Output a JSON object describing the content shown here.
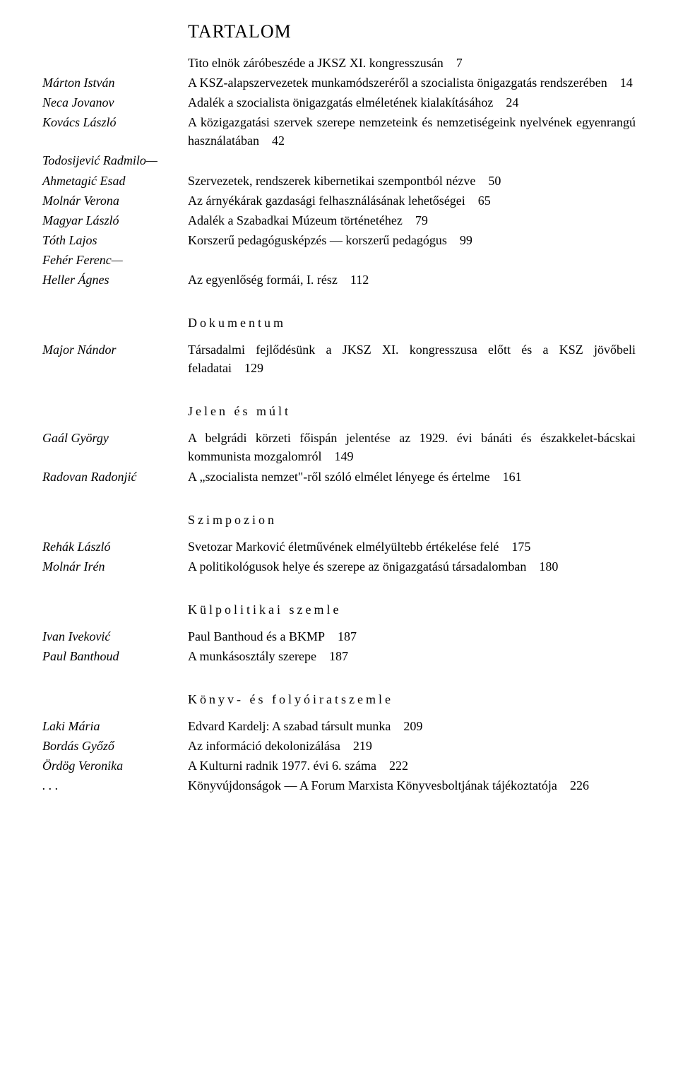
{
  "title": "TARTALOM",
  "sections": [
    {
      "heading": null,
      "entries": [
        {
          "author": "",
          "text": "Tito elnök záróbeszéde a JKSZ XI. kongresszusán",
          "page": "7"
        },
        {
          "author": "Márton István",
          "text": "A KSZ-alapszervezetek munkamódszeréről a szocialista önigazgatás rendszerében",
          "page": "14"
        },
        {
          "author": "Neca Jovanov",
          "text": "Adalék a szocialista önigazgatás elméletének kialakításához",
          "page": "24"
        },
        {
          "author": "Kovács László",
          "text": "A közigazgatási szervek szerepe nemzeteink és nemzetiségeink nyelvének egyenrangú használatában",
          "page": "42"
        },
        {
          "author": "Todosijević Radmilo—",
          "text": "",
          "page": ""
        },
        {
          "author": "Ahmetagić Esad",
          "text": "Szervezetek, rendszerek kibernetikai szempontból nézve",
          "page": "50"
        },
        {
          "author": "Molnár Verona",
          "text": "Az árnyékárak gazdasági felhasználásának lehetőségei",
          "page": "65"
        },
        {
          "author": "Magyar László",
          "text": "Adalék a Szabadkai Múzeum történetéhez",
          "page": "79"
        },
        {
          "author": "Tóth Lajos",
          "text": "Korszerű pedagógusképzés — korszerű pedagógus",
          "page": "99"
        },
        {
          "author": "Fehér Ferenc—",
          "text": "",
          "page": ""
        },
        {
          "author": "Heller Ágnes",
          "text": "Az egyenlőség formái, I. rész",
          "page": "112"
        }
      ]
    },
    {
      "heading": "Dokumentum",
      "entries": [
        {
          "author": "Major Nándor",
          "text": "Társadalmi fejlődésünk a JKSZ XI. kongresszusa előtt és a KSZ jövőbeli feladatai",
          "page": "129"
        }
      ]
    },
    {
      "heading": "Jelen és múlt",
      "entries": [
        {
          "author": "Gaál György",
          "text": "A belgrádi körzeti főispán jelentése az 1929. évi bánáti és északkelet-bácskai kommunista mozgalomról",
          "page": "149"
        },
        {
          "author": "Radovan Radonjić",
          "text": "A „szocialista nemzet\"-ről szóló elmélet lényege és értelme",
          "page": "161"
        }
      ]
    },
    {
      "heading": "Szimpozion",
      "entries": [
        {
          "author": "Rehák László",
          "text": "Svetozar Marković életművének elmélyültebb értékelése felé",
          "page": "175"
        },
        {
          "author": "Molnár Irén",
          "text": "A politikológusok helye és szerepe az önigazgatású társadalomban",
          "page": "180"
        }
      ]
    },
    {
      "heading": "Külpolitikai szemle",
      "entries": [
        {
          "author": "Ivan Iveković",
          "text": "Paul Banthoud és a BKMP",
          "page": "187"
        },
        {
          "author": "Paul Banthoud",
          "text": "A munkásosztály szerepe",
          "page": "187"
        }
      ]
    },
    {
      "heading": "Könyv- és folyóiratszemle",
      "entries": [
        {
          "author": "Laki Mária",
          "text": "Edvard Kardelj: A szabad társult munka",
          "page": "209"
        },
        {
          "author": "Bordás Győző",
          "text": "Az információ dekolonizálása",
          "page": "219"
        },
        {
          "author": "Ördög Veronika",
          "text": "A Kulturni radnik 1977. évi 6. száma",
          "page": "222"
        },
        {
          "author": ". . .",
          "text": "Könyvújdonságok — A Forum Marxista Könyvesboltjának tájékoztatója",
          "page": "226"
        }
      ]
    }
  ]
}
